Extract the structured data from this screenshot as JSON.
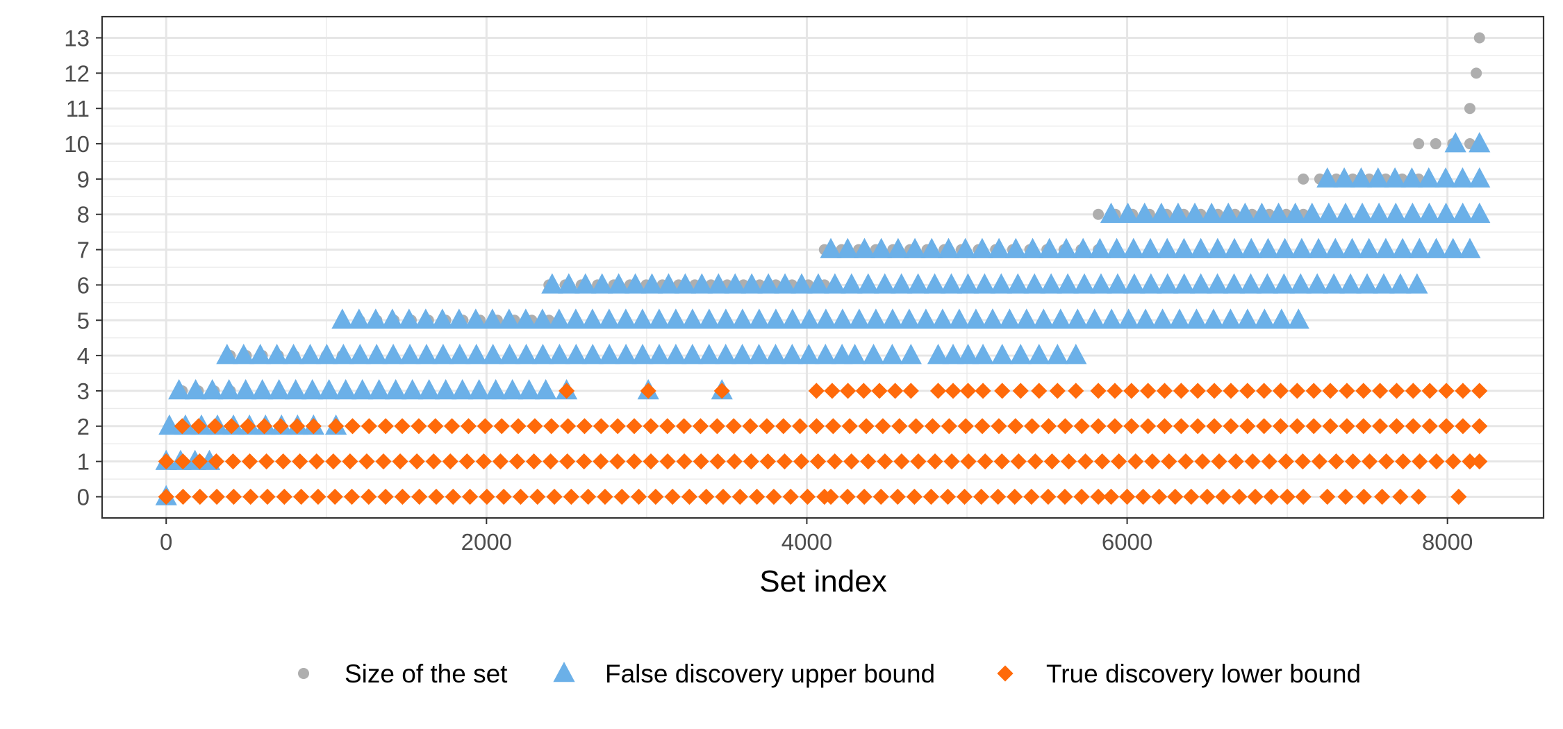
{
  "chart_data": {
    "type": "scatter",
    "title": "",
    "xlabel": "Set index",
    "ylabel": "",
    "xlim": [
      -400,
      8600
    ],
    "ylim": [
      -0.6,
      13.6
    ],
    "x_ticks": [
      0,
      2000,
      4000,
      6000,
      8000
    ],
    "x_tick_labels": [
      "0",
      "2000",
      "4000",
      "6000",
      "8000"
    ],
    "y_ticks": [
      0,
      1,
      2,
      3,
      4,
      5,
      6,
      7,
      8,
      9,
      10,
      11,
      12,
      13
    ],
    "y_tick_labels": [
      "0",
      "1",
      "2",
      "3",
      "4",
      "5",
      "6",
      "7",
      "8",
      "9",
      "10",
      "11",
      "12",
      "13"
    ],
    "grid": true,
    "legend_position": "bottom",
    "series": [
      {
        "name": "Size of the set",
        "marker": "circle",
        "color": "#AEAEAE",
        "segments": [
          {
            "y": 1,
            "x": [
              0,
              20
            ]
          },
          {
            "y": 2,
            "x": [
              20,
              100
            ]
          },
          {
            "y": 3,
            "x": [
              100,
              400
            ]
          },
          {
            "y": 4,
            "x": [
              400,
              1100
            ]
          },
          {
            "y": 5,
            "x": [
              1100,
              2390
            ]
          },
          {
            "y": 6,
            "x": [
              2390,
              4110
            ]
          },
          {
            "y": 7,
            "x": [
              4110,
              5820
            ]
          },
          {
            "y": 8,
            "x": [
              5820,
              7100
            ]
          },
          {
            "y": 9,
            "x": [
              7100,
              7820
            ]
          },
          {
            "y": 10,
            "x": [
              7820,
              8140
            ]
          },
          {
            "y": 11,
            "x": [
              8140,
              8180
            ]
          },
          {
            "y": 12,
            "x": [
              8180,
              8200
            ]
          },
          {
            "y": 13,
            "x": [
              8200,
              8210
            ]
          }
        ]
      },
      {
        "name": "False discovery upper bound",
        "marker": "triangle",
        "color": "#6BB0E8",
        "segments": [
          {
            "y": 0,
            "x": [
              0,
              10
            ]
          },
          {
            "y": 1,
            "x": [
              0,
              270
            ]
          },
          {
            "y": 2,
            "x": [
              20,
              920
            ]
          },
          {
            "y": 2,
            "x": [
              1060,
              1070
            ]
          },
          {
            "y": 3,
            "x": [
              80,
              2370
            ]
          },
          {
            "y": 3,
            "x": [
              2500,
              2500
            ]
          },
          {
            "y": 3,
            "x": [
              3010,
              3010
            ]
          },
          {
            "y": 3,
            "x": [
              3470,
              3470
            ]
          },
          {
            "y": 4,
            "x": [
              380,
              4220
            ]
          },
          {
            "y": 4,
            "x": [
              4300,
              4650
            ]
          },
          {
            "y": 4,
            "x": [
              4820,
              5100
            ]
          },
          {
            "y": 4,
            "x": [
              5220,
              5680
            ]
          },
          {
            "y": 5,
            "x": [
              1100,
              5160
            ]
          },
          {
            "y": 5,
            "x": [
              5160,
              7070
            ]
          },
          {
            "y": 6,
            "x": [
              2410,
              7810
            ]
          },
          {
            "y": 7,
            "x": [
              4150,
              8140
            ]
          },
          {
            "y": 8,
            "x": [
              5900,
              8200
            ]
          },
          {
            "y": 9,
            "x": [
              7250,
              8200
            ]
          },
          {
            "y": 10,
            "x": [
              8050,
              8200
            ]
          }
        ]
      },
      {
        "name": "True discovery lower bound",
        "marker": "diamond",
        "color": "#FF6A0A",
        "segments": [
          {
            "y": 0,
            "x": [
              0,
              4110
            ]
          },
          {
            "y": 0,
            "x": [
              4150,
              5820
            ]
          },
          {
            "y": 0,
            "x": [
              5900,
              7100
            ]
          },
          {
            "y": 0,
            "x": [
              7250,
              7820
            ]
          },
          {
            "y": 0,
            "x": [
              8070,
              8070
            ]
          },
          {
            "y": 1,
            "x": [
              0,
              8140
            ]
          },
          {
            "y": 1,
            "x": [
              8200,
              8200
            ]
          },
          {
            "y": 2,
            "x": [
              100,
              920
            ]
          },
          {
            "y": 2,
            "x": [
              1060,
              8200
            ]
          },
          {
            "y": 3,
            "x": [
              2500,
              2500
            ]
          },
          {
            "y": 3,
            "x": [
              3010,
              3010
            ]
          },
          {
            "y": 3,
            "x": [
              3470,
              3470
            ]
          },
          {
            "y": 3,
            "x": [
              4060,
              4650
            ]
          },
          {
            "y": 3,
            "x": [
              4820,
              5100
            ]
          },
          {
            "y": 3,
            "x": [
              5220,
              5680
            ]
          },
          {
            "y": 3,
            "x": [
              5820,
              8200
            ]
          }
        ]
      }
    ]
  }
}
